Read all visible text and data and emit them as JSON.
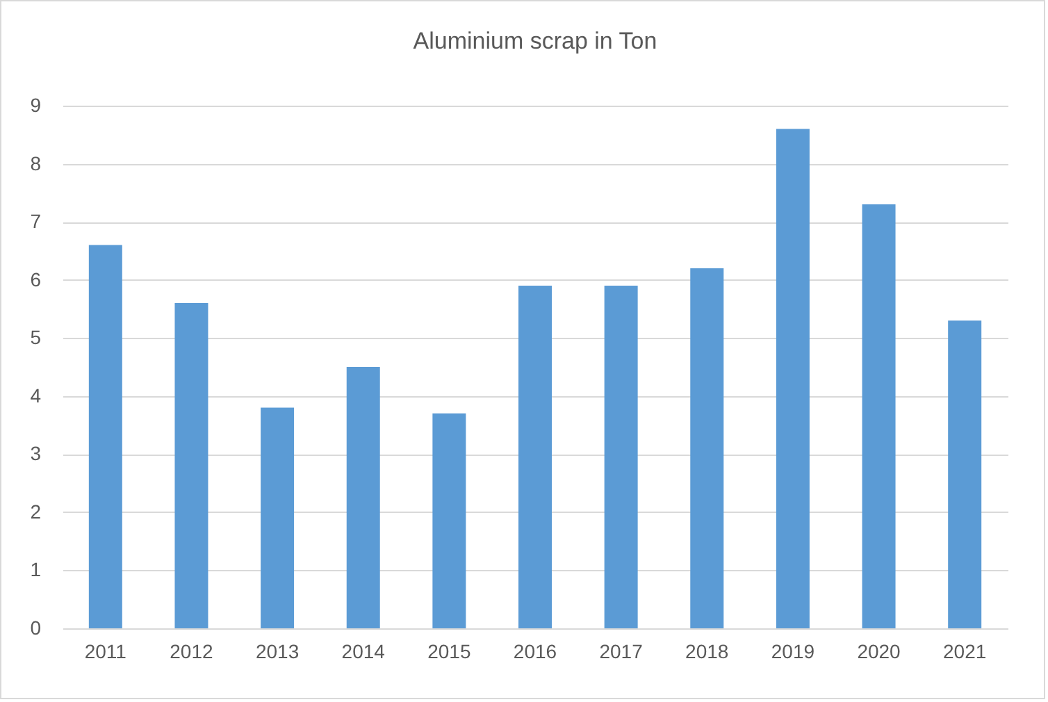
{
  "chart_data": {
    "type": "bar",
    "title": "Aluminium scrap in Ton",
    "categories": [
      "2011",
      "2012",
      "2013",
      "2014",
      "2015",
      "2016",
      "2017",
      "2018",
      "2019",
      "2020",
      "2021"
    ],
    "values": [
      6.6,
      5.6,
      3.8,
      4.5,
      3.7,
      5.9,
      5.9,
      6.2,
      8.6,
      7.3,
      5.3
    ],
    "color": "#5b9bd5",
    "ylim": [
      0,
      9
    ],
    "yticks": [
      0,
      1,
      2,
      3,
      4,
      5,
      6,
      7,
      8,
      9
    ],
    "grid": "y"
  }
}
